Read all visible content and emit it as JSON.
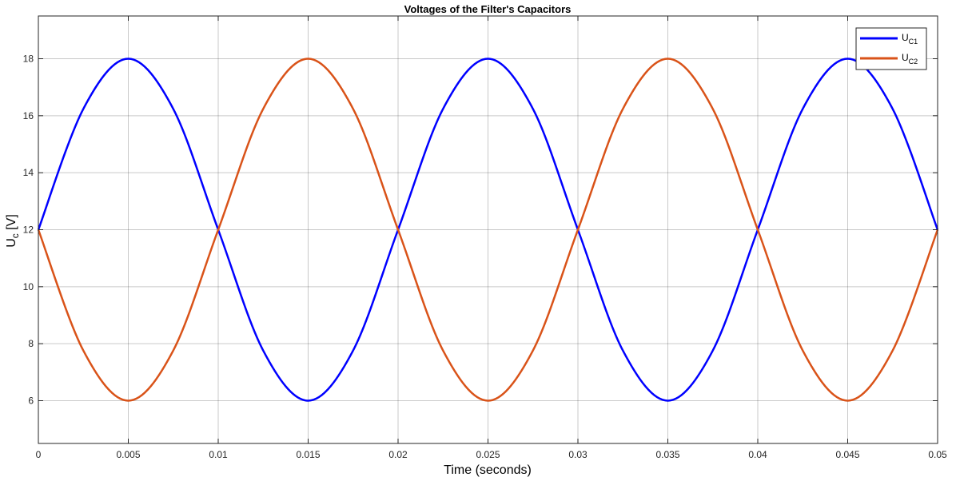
{
  "chart_data": {
    "type": "line",
    "title": "Voltages of the Filter's Capacitors",
    "xlabel": "Time (seconds)",
    "ylabel": {
      "base": "U",
      "sub": "c",
      "rest": " [V]"
    },
    "xlim": [
      0,
      0.05
    ],
    "ylim": [
      4.5,
      19.5
    ],
    "x_ticks": [
      0,
      0.005,
      0.01,
      0.015,
      0.02,
      0.025,
      0.03,
      0.035,
      0.04,
      0.045,
      0.05
    ],
    "x_tick_labels": [
      "0",
      "0.005",
      "0.01",
      "0.015",
      "0.02",
      "0.025",
      "0.03",
      "0.035",
      "0.04",
      "0.045",
      "0.05"
    ],
    "y_ticks": [
      6,
      8,
      10,
      12,
      14,
      16,
      18
    ],
    "y_tick_labels": [
      "6",
      "8",
      "10",
      "12",
      "14",
      "16",
      "18"
    ],
    "grid": true,
    "legend_position": "top-right",
    "series": [
      {
        "name": {
          "base": "U",
          "sub": "C1"
        },
        "color": "#0000ff",
        "x": [
          0,
          0.0025,
          0.005,
          0.0075,
          0.01,
          0.0125,
          0.015,
          0.0175,
          0.02,
          0.0225,
          0.025,
          0.0275,
          0.03,
          0.0325,
          0.035,
          0.0375,
          0.04,
          0.0425,
          0.045,
          0.0475,
          0.05
        ],
        "y": [
          12,
          16.24,
          18,
          16.24,
          12,
          7.76,
          6,
          7.76,
          12,
          16.24,
          18,
          16.24,
          12,
          7.76,
          6,
          7.76,
          12,
          16.24,
          18,
          16.24,
          12
        ]
      },
      {
        "name": {
          "base": "U",
          "sub": "C2"
        },
        "color": "#d95319",
        "x": [
          0,
          0.0025,
          0.005,
          0.0075,
          0.01,
          0.0125,
          0.015,
          0.0175,
          0.02,
          0.0225,
          0.025,
          0.0275,
          0.03,
          0.0325,
          0.035,
          0.0375,
          0.04,
          0.0425,
          0.045,
          0.0475,
          0.05
        ],
        "y": [
          12,
          7.76,
          6,
          7.76,
          12,
          16.24,
          18,
          16.24,
          12,
          7.76,
          6,
          7.76,
          12,
          16.24,
          18,
          16.24,
          12,
          7.76,
          6,
          7.76,
          12
        ]
      }
    ]
  }
}
